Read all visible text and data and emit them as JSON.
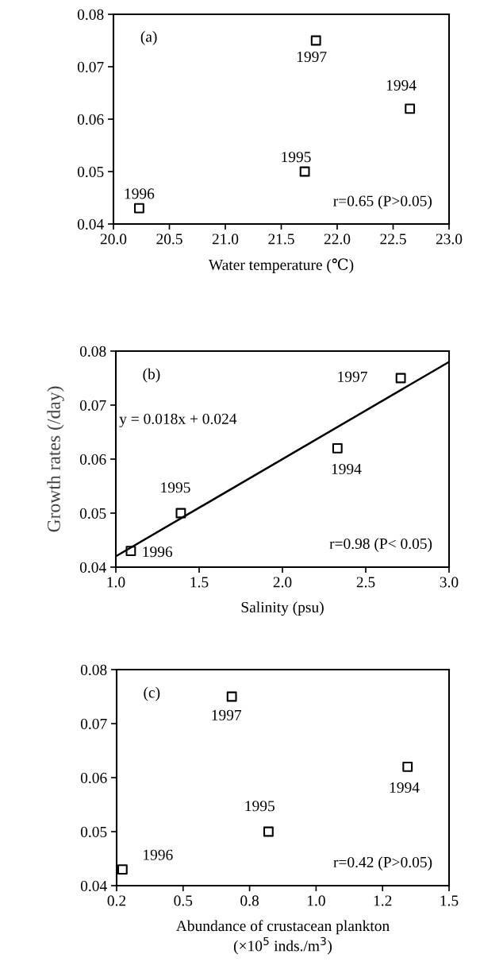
{
  "chart_data": [
    {
      "type": "scatter",
      "xlabel": "Water temperature (℃)",
      "xlim": [
        20.0,
        23.0
      ],
      "xticks": [
        {
          "value": 20.0,
          "label": "20.0"
        },
        {
          "value": 20.5,
          "label": "20.5"
        },
        {
          "value": 21.0,
          "label": "21.0"
        },
        {
          "value": 21.5,
          "label": "21.5"
        },
        {
          "value": 22.0,
          "label": "22.0"
        },
        {
          "value": 22.5,
          "label": "22.5"
        },
        {
          "value": 23.0,
          "label": "23.0"
        }
      ],
      "ylim": [
        0.04,
        0.08
      ],
      "yticks": [
        {
          "value": 0.04,
          "label": "0.04"
        },
        {
          "value": 0.05,
          "label": "0.05"
        },
        {
          "value": 0.06,
          "label": "0.06"
        },
        {
          "value": 0.07,
          "label": "0.07"
        },
        {
          "value": 0.08,
          "label": "0.08"
        }
      ],
      "grid": false,
      "series": [
        {
          "color": "#000000",
          "marker": "square",
          "x": [
            20.23,
            21.71,
            21.81,
            22.65
          ],
          "values": [
            0.043,
            0.05,
            0.075,
            0.062
          ]
        }
      ],
      "annotations": [
        {
          "text": "1996",
          "x": 20.23,
          "y": 0.043
        },
        {
          "text": "1995",
          "x": 21.71,
          "y": 0.05
        },
        {
          "text": "1997",
          "x": 21.81,
          "y": 0.075
        },
        {
          "text": "1994",
          "x": 22.65,
          "y": 0.062
        },
        "(a)",
        "r=0.65 (P>0.05)"
      ]
    },
    {
      "type": "scatter",
      "xlabel": "Salinity (psu)",
      "ylabel": "Growth rates (/day)",
      "xlim": [
        1.0,
        3.0
      ],
      "xticks": [
        {
          "value": 1.0,
          "label": "1.0"
        },
        {
          "value": 1.5,
          "label": "1.5"
        },
        {
          "value": 2.0,
          "label": "2.0"
        },
        {
          "value": 2.5,
          "label": "2.5"
        },
        {
          "value": 3.0,
          "label": "3.0"
        }
      ],
      "ylim": [
        0.04,
        0.08
      ],
      "yticks": [
        {
          "value": 0.04,
          "label": "0.04"
        },
        {
          "value": 0.05,
          "label": "0.05"
        },
        {
          "value": 0.06,
          "label": "0.06"
        },
        {
          "value": 0.07,
          "label": "0.07"
        },
        {
          "value": 0.08,
          "label": "0.08"
        }
      ],
      "grid": false,
      "series": [
        {
          "color": "#000000",
          "marker": "square",
          "x": [
            1.09,
            1.39,
            2.33,
            2.71
          ],
          "values": [
            0.043,
            0.05,
            0.062,
            0.075
          ]
        },
        {
          "type": "line",
          "color": "#000000",
          "x": [
            1.0,
            3.0
          ],
          "values": [
            0.042,
            0.078
          ]
        }
      ],
      "annotations": [
        {
          "text": "1996",
          "x": 1.09,
          "y": 0.043
        },
        {
          "text": "1995",
          "x": 1.39,
          "y": 0.05
        },
        {
          "text": "1994",
          "x": 2.33,
          "y": 0.062
        },
        {
          "text": "1997",
          "x": 2.71,
          "y": 0.075
        },
        "(b)",
        "r=0.98 (P< 0.05)",
        "y = 0.018x + 0.024"
      ]
    },
    {
      "type": "scatter",
      "xlabel": "Abundance of crustacean plankton\n(×10$^{5}$ inds./m$^{3}$)",
      "xlim": [
        0.25,
        1.5
      ],
      "xticks": [
        {
          "value": 0.25,
          "label": "0.2"
        },
        {
          "value": 0.5,
          "label": "0.5"
        },
        {
          "value": 0.75,
          "label": "0.8"
        },
        {
          "value": 1.0,
          "label": "1.0"
        },
        {
          "value": 1.25,
          "label": "1.2"
        },
        {
          "value": 1.5,
          "label": "1.5"
        }
      ],
      "ylim": [
        0.04,
        0.08
      ],
      "yticks": [
        {
          "value": 0.04,
          "label": "0.04"
        },
        {
          "value": 0.05,
          "label": "0.05"
        },
        {
          "value": 0.06,
          "label": "0.06"
        },
        {
          "value": 0.07,
          "label": "0.07"
        },
        {
          "value": 0.08,
          "label": "0.08"
        }
      ],
      "grid": false,
      "series": [
        {
          "color": "#000000",
          "marker": "square",
          "x": [
            0.272,
            0.683,
            0.821,
            1.344
          ],
          "values": [
            0.043,
            0.075,
            0.05,
            0.062
          ]
        }
      ],
      "annotations": [
        {
          "text": "1996",
          "x": 0.272,
          "y": 0.043
        },
        {
          "text": "1997",
          "x": 0.683,
          "y": 0.075
        },
        {
          "text": "1995",
          "x": 0.821,
          "y": 0.05
        },
        {
          "text": "1994",
          "x": 1.344,
          "y": 0.062
        },
        "(c)",
        "r=0.42 (P>0.05)"
      ]
    }
  ]
}
